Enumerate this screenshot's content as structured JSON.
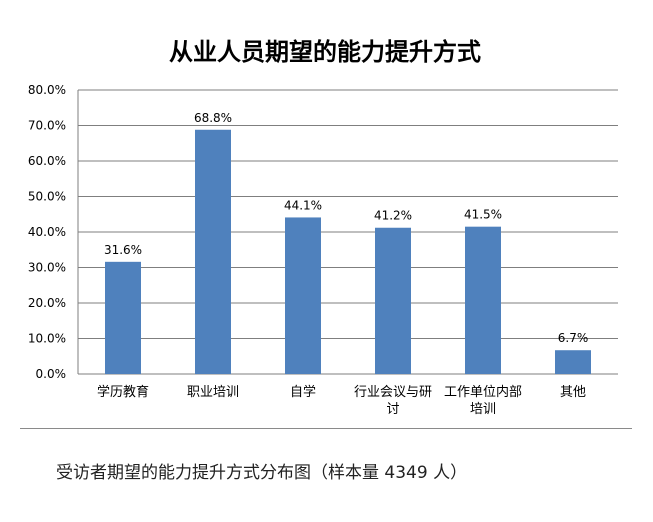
{
  "chart_data": {
    "type": "bar",
    "title": "从业人员期望的能力提升方式",
    "categories": [
      "学历教育",
      "职业培训",
      "自学",
      "行业会议与研讨",
      "工作单位内部培训",
      "其他"
    ],
    "category_lines": [
      [
        "学历教育"
      ],
      [
        "职业培训"
      ],
      [
        "自学"
      ],
      [
        "行业会议与研",
        "讨"
      ],
      [
        "工作单位内部",
        "培训"
      ],
      [
        "其他"
      ]
    ],
    "values": [
      31.6,
      68.8,
      44.1,
      41.2,
      41.5,
      6.7
    ],
    "data_labels": [
      "31.6%",
      "68.8%",
      "44.1%",
      "41.2%",
      "41.5%",
      "6.7%"
    ],
    "y_ticks": [
      "0.0%",
      "10.0%",
      "20.0%",
      "30.0%",
      "40.0%",
      "50.0%",
      "60.0%",
      "70.0%",
      "80.0%"
    ],
    "ylim": [
      0,
      80
    ],
    "xlabel": "",
    "ylabel": "",
    "grid": true,
    "bar_color": "#4f81bd",
    "legend": "none"
  },
  "caption": "受访者期望的能力提升方式分布图（样本量 4349 人）"
}
